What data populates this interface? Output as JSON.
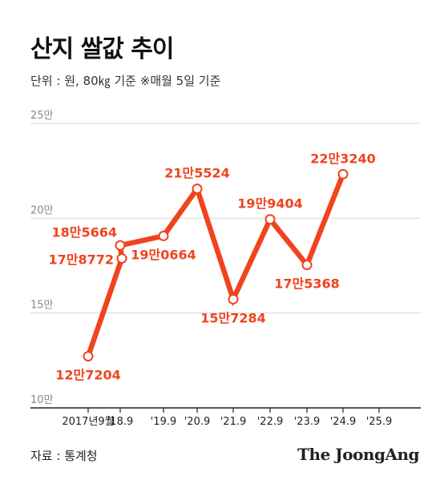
{
  "title": "산지 쌀값 추이",
  "unit_note": "단위 : 원, 80㎏ 기준   ※매월 5일 기준",
  "source": "자료 : 통계청",
  "logo": "The JoongAng",
  "colors": {
    "line": "#f0441e",
    "label": "#f0441e",
    "grid": "#d7d7d7",
    "axis": "#222222"
  },
  "chart_data": {
    "type": "line",
    "title": "산지 쌀값 추이",
    "xlabel": "",
    "ylabel": "",
    "ylim": [
      100000,
      250000
    ],
    "yticks": [
      {
        "value": 250000,
        "label": "25만"
      },
      {
        "value": 200000,
        "label": "20만"
      },
      {
        "value": 150000,
        "label": "15만"
      },
      {
        "value": 100000,
        "label": "10만"
      }
    ],
    "xticks": [
      "2017년9월",
      "'18.9",
      "'19.9",
      "'20.9",
      "'21.9",
      "'22.9",
      "'23.9",
      "'24.9",
      "'25.9"
    ],
    "grid": true,
    "legend": "none",
    "points": [
      {
        "x": "2017.9",
        "value": 127204,
        "label": "12만7204",
        "pos": "below"
      },
      {
        "x": "2018.5",
        "value": 178772,
        "label": "17만8772",
        "pos": "left"
      },
      {
        "x": "2018.9",
        "value": 185664,
        "label": "18만5664",
        "pos": "above-left"
      },
      {
        "x": "2019.9",
        "value": 190664,
        "label": "19만0664",
        "pos": "below"
      },
      {
        "x": "2020.9",
        "value": 215524,
        "label": "21만5524",
        "pos": "above"
      },
      {
        "x": "2021.9",
        "value": 157284,
        "label": "15만7284",
        "pos": "below"
      },
      {
        "x": "2022.9",
        "value": 199404,
        "label": "19만9404",
        "pos": "above"
      },
      {
        "x": "2023.9",
        "value": 175368,
        "label": "17만5368",
        "pos": "below"
      },
      {
        "x": "2024.9",
        "value": 223240,
        "label": "22만3240",
        "pos": "above"
      }
    ]
  }
}
